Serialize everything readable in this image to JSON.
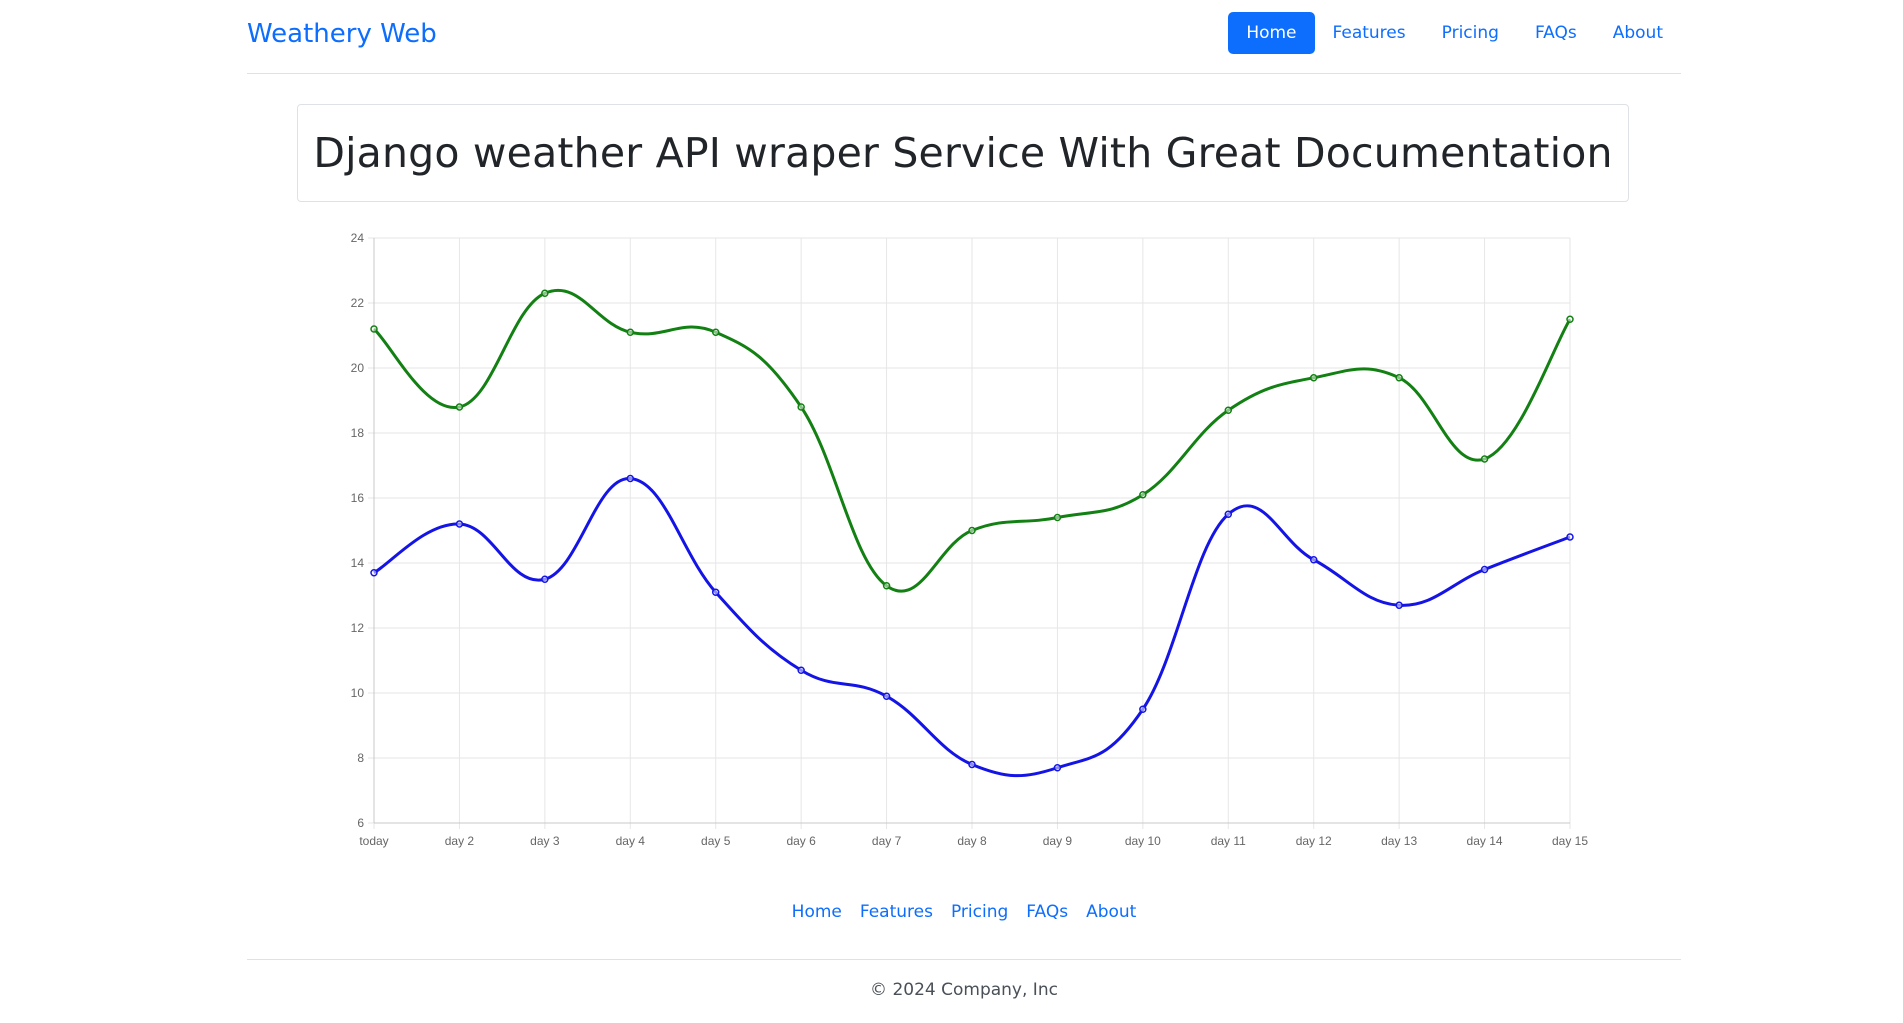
{
  "nav": {
    "brand": "Weathery Web",
    "items": [
      {
        "label": "Home",
        "active": true
      },
      {
        "label": "Features",
        "active": false
      },
      {
        "label": "Pricing",
        "active": false
      },
      {
        "label": "FAQs",
        "active": false
      },
      {
        "label": "About",
        "active": false
      }
    ]
  },
  "hero": {
    "title": "Django weather API wraper Service With Great Documentation"
  },
  "chart_data": {
    "type": "line",
    "title": "",
    "xlabel": "",
    "ylabel": "",
    "categories": [
      "today",
      "day 2",
      "day 3",
      "day 4",
      "day 5",
      "day 6",
      "day 7",
      "day 8",
      "day 9",
      "day 10",
      "day 11",
      "day 12",
      "day 13",
      "day 14",
      "day 15"
    ],
    "ylim": [
      6,
      24
    ],
    "yticks": [
      6,
      8,
      10,
      12,
      14,
      16,
      18,
      20,
      22,
      24
    ],
    "grid": true,
    "legend": "none",
    "series": [
      {
        "color": "#128012",
        "values": [
          21.2,
          18.8,
          22.3,
          21.1,
          21.1,
          18.8,
          13.3,
          15.0,
          15.4,
          16.1,
          18.7,
          19.7,
          19.7,
          17.2,
          21.5
        ]
      },
      {
        "color": "#1414e6",
        "values": [
          13.7,
          15.2,
          13.5,
          16.6,
          13.1,
          10.7,
          9.9,
          7.8,
          7.7,
          9.5,
          15.5,
          14.1,
          12.7,
          13.8,
          14.8
        ]
      }
    ]
  },
  "footer": {
    "links": [
      "Home",
      "Features",
      "Pricing",
      "FAQs",
      "About"
    ],
    "copyright": "© 2024 Company, Inc"
  }
}
